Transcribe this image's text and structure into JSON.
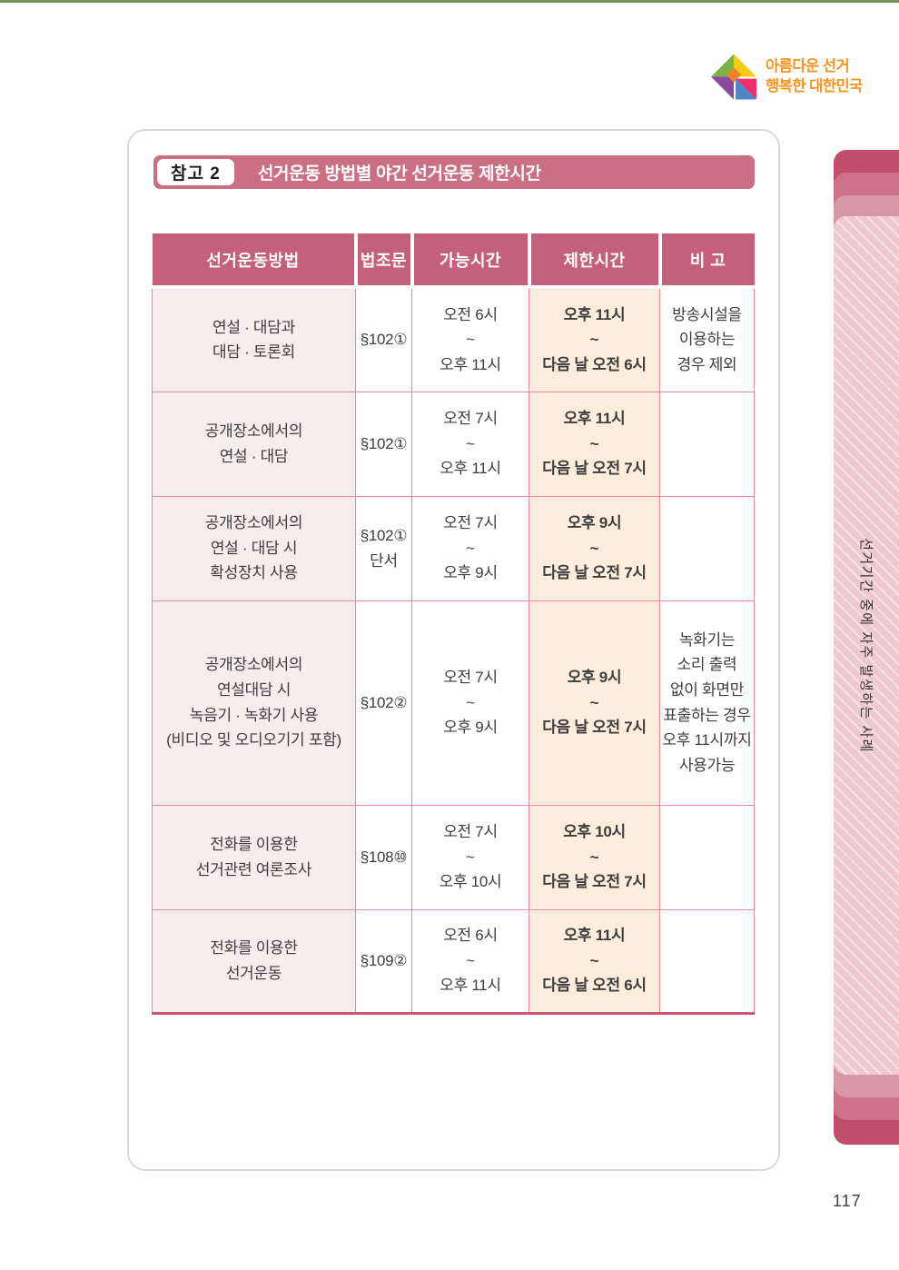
{
  "logo": {
    "line1": "아름다운 선거",
    "line2": "행복한 대한민국"
  },
  "header": {
    "badge": "참고 2",
    "title": "선거운동 방법별 야간 선거운동 제한시간"
  },
  "table": {
    "columns": [
      "선거운동방법",
      "법조문",
      "가능시간",
      "제한시간",
      "비 고"
    ],
    "rows": [
      {
        "method": [
          "연설 · 대담과",
          "대담 · 토론회"
        ],
        "law": [
          "§102①"
        ],
        "allowed": [
          "오전 6시",
          "~",
          "오후 11시"
        ],
        "restricted": [
          "오후 11시",
          "~",
          "다음 날 오전 6시"
        ],
        "note": [
          "방송시설을",
          "이용하는",
          "경우 제외"
        ]
      },
      {
        "method": [
          "공개장소에서의",
          "연설 · 대담"
        ],
        "law": [
          "§102①"
        ],
        "allowed": [
          "오전 7시",
          "~",
          "오후 11시"
        ],
        "restricted": [
          "오후 11시",
          "~",
          "다음 날 오전 7시"
        ],
        "note": []
      },
      {
        "method": [
          "공개장소에서의",
          "연설 · 대담 시",
          "확성장치 사용"
        ],
        "law": [
          "§102①",
          "단서"
        ],
        "allowed": [
          "오전 7시",
          "~",
          "오후 9시"
        ],
        "restricted": [
          "오후 9시",
          "~",
          "다음 날 오전 7시"
        ],
        "note": []
      },
      {
        "method": [
          "공개장소에서의",
          "연설대담 시",
          "녹음기 · 녹화기 사용",
          "(비디오 및 오디오기기 포함)"
        ],
        "law": [
          "§102②"
        ],
        "allowed": [
          "오전 7시",
          "~",
          "오후 9시"
        ],
        "restricted": [
          "오후 9시",
          "~",
          "다음 날 오전 7시"
        ],
        "note": [
          "녹화기는",
          "소리 출력",
          "없이 화면만",
          "표출하는 경우",
          "오후 11시까지",
          "사용가능"
        ]
      },
      {
        "method": [
          "전화를 이용한",
          "선거관련 여론조사"
        ],
        "law": [
          "§108⑩"
        ],
        "allowed": [
          "오전 7시",
          "~",
          "오후 10시"
        ],
        "restricted": [
          "오후 10시",
          "~",
          "다음 날 오전 7시"
        ],
        "note": []
      },
      {
        "method": [
          "전화를 이용한",
          "선거운동"
        ],
        "law": [
          "§109②"
        ],
        "allowed": [
          "오전 6시",
          "~",
          "오후 11시"
        ],
        "restricted": [
          "오후 11시",
          "~",
          "다음 날 오전 6시"
        ],
        "note": []
      }
    ]
  },
  "side_tab": {
    "label": "선거기간 중에 자주 발생하는 사례"
  },
  "page_number": "117",
  "colors": {
    "accent_rose": "#c5607a",
    "header_bar": "#ca7082",
    "method_col_bg": "#f9ecee",
    "restricted_col_bg": "#fdeddc",
    "table_border": "#e28ba0",
    "table_bottom_border": "#c85671",
    "top_rule_green": "#74935a",
    "logo_orange": "#f7941e",
    "tab_layer_dark": "#c24d6b",
    "tab_layer_light": "#eec9d1"
  }
}
